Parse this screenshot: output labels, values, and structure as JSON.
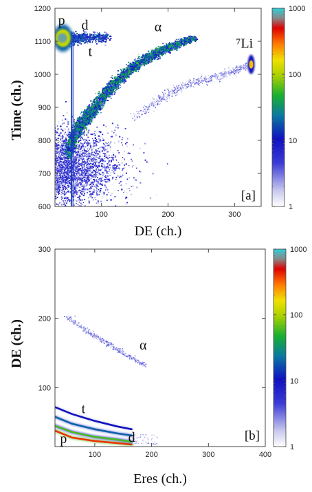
{
  "chart_data": [
    {
      "type": "heatmap",
      "panel_label": "[a]",
      "xlabel": "DE (ch.)",
      "ylabel": "Time (ch.)",
      "xlim": [
        30,
        340
      ],
      "ylim": [
        600,
        1200
      ],
      "xticks": [
        "100",
        "200",
        "300"
      ],
      "xtick_values": [
        100,
        200,
        300
      ],
      "yticks": [
        "600",
        "700",
        "800",
        "900",
        "1000",
        "1100",
        "1200"
      ],
      "ytick_values": [
        600,
        700,
        800,
        900,
        1000,
        1100,
        1200
      ],
      "colorbar": {
        "scale": "log",
        "min": 1,
        "max": 1000,
        "ticks": [
          "1",
          "10",
          "100",
          "1000"
        ]
      },
      "annotations": [
        {
          "text": "p",
          "x": 40,
          "y": 1150
        },
        {
          "text": "d",
          "x": 75,
          "y": 1135
        },
        {
          "text": "t",
          "x": 83,
          "y": 1055
        },
        {
          "text": "α",
          "x": 185,
          "y": 1130
        },
        {
          "text": "⁷Li",
          "x": 315,
          "y": 1080
        }
      ],
      "features": [
        {
          "name": "alpha-band",
          "points": [
            [
              50,
              760
            ],
            [
              60,
              820
            ],
            [
              75,
              860
            ],
            [
              90,
              900
            ],
            [
              110,
              950
            ],
            [
              140,
              1010
            ],
            [
              170,
              1050
            ],
            [
              200,
              1080
            ],
            [
              240,
              1110
            ]
          ],
          "intensity": 40
        },
        {
          "name": "li-band",
          "points": [
            [
              150,
              870
            ],
            [
              190,
              930
            ],
            [
              230,
              970
            ],
            [
              270,
              990
            ],
            [
              300,
              1010
            ],
            [
              325,
              1030
            ]
          ],
          "intensity": 3
        },
        {
          "name": "p-spot",
          "x": 40,
          "y": 1110,
          "intensity": 800
        },
        {
          "name": "li-spot",
          "x": 325,
          "y": 1030,
          "intensity": 200
        },
        {
          "name": "dt-ridge",
          "points": [
            [
              45,
              1105
            ],
            [
              60,
              1108
            ],
            [
              80,
              1110
            ],
            [
              110,
              1112
            ]
          ],
          "intensity": 20
        },
        {
          "name": "vertical-line",
          "x": 55,
          "y_range": [
            600,
            1130
          ],
          "intensity": 15
        },
        {
          "name": "low-cloud",
          "x_range": [
            30,
            150
          ],
          "y_range": [
            620,
            800
          ],
          "intensity": 5
        }
      ]
    },
    {
      "type": "heatmap",
      "panel_label": "[b]",
      "xlabel": "Eres (ch.)",
      "ylabel": "DE (ch.)",
      "xlim": [
        30,
        400
      ],
      "ylim": [
        15,
        300
      ],
      "xticks": [
        "100",
        "200",
        "300",
        "400"
      ],
      "xtick_values": [
        100,
        200,
        300,
        400
      ],
      "yticks": [
        "100",
        "200",
        "300"
      ],
      "ytick_values": [
        100,
        200,
        300
      ],
      "colorbar": {
        "scale": "log",
        "min": 1,
        "max": 1000,
        "ticks": [
          "1",
          "10",
          "100",
          "1000"
        ]
      },
      "annotations": [
        {
          "text": "p",
          "x": 45,
          "y": 20
        },
        {
          "text": "d",
          "x": 165,
          "y": 22
        },
        {
          "text": "t",
          "x": 80,
          "y": 63
        },
        {
          "text": "α",
          "x": 185,
          "y": 155
        }
      ],
      "features": [
        {
          "name": "alpha-band",
          "points": [
            [
              50,
              203
            ],
            [
              80,
              185
            ],
            [
              110,
              170
            ],
            [
              140,
              155
            ],
            [
              160,
              145
            ],
            [
              190,
              132
            ]
          ],
          "intensity": 3
        },
        {
          "name": "t-band",
          "points": [
            [
              30,
              72
            ],
            [
              60,
              62
            ],
            [
              100,
              52
            ],
            [
              140,
              44
            ],
            [
              165,
              40
            ]
          ],
          "intensity": 10
        },
        {
          "name": "d-band",
          "points": [
            [
              30,
              58
            ],
            [
              60,
              48
            ],
            [
              100,
              40
            ],
            [
              140,
              34
            ],
            [
              165,
              31
            ]
          ],
          "intensity": 20
        },
        {
          "name": "p-band",
          "points": [
            [
              30,
              45
            ],
            [
              60,
              36
            ],
            [
              100,
              29
            ],
            [
              140,
              25
            ],
            [
              165,
              22
            ]
          ],
          "intensity": 60
        },
        {
          "name": "p-low-band",
          "points": [
            [
              30,
              38
            ],
            [
              60,
              28
            ],
            [
              100,
              23
            ],
            [
              140,
              20
            ],
            [
              165,
              18
            ]
          ],
          "intensity": 400
        }
      ]
    }
  ]
}
